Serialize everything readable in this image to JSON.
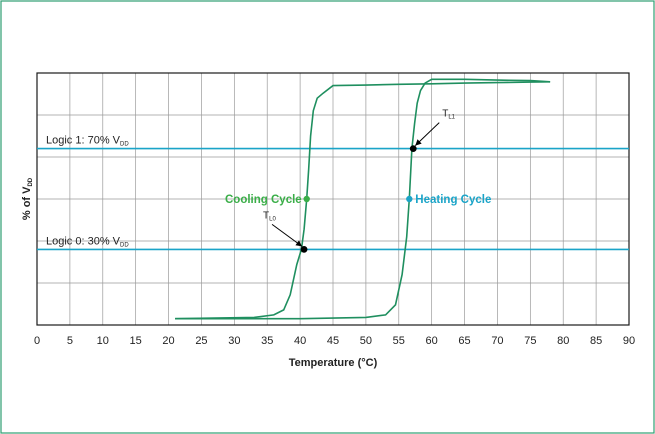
{
  "chart_data": {
    "type": "line",
    "title": "",
    "xlabel": "Temperature (°C)",
    "ylabel": {
      "main": "% of V",
      "sub": "DD"
    },
    "xlim": [
      0,
      90
    ],
    "ylim": [
      0,
      100
    ],
    "xticks": [
      0,
      5,
      10,
      15,
      20,
      25,
      30,
      35,
      40,
      45,
      50,
      55,
      60,
      65,
      70,
      75,
      80,
      85,
      90
    ],
    "yticks": [
      0,
      16.67,
      33.33,
      50,
      66.67,
      83.33,
      100
    ],
    "grid": true,
    "series": [
      {
        "x": [
          21,
          33,
          36,
          37.5,
          38.5,
          39.5,
          40.2,
          40.6,
          41,
          41.3,
          41.6,
          42,
          42.6,
          43.5,
          45,
          50,
          55,
          60,
          65,
          70,
          75,
          78
        ],
        "y": [
          2.5,
          3,
          4,
          6,
          12,
          24,
          30,
          38,
          50,
          62,
          75,
          85,
          90,
          92,
          95,
          95.2,
          95.5,
          95.7,
          96,
          96.2,
          96.4,
          96.5
        ],
        "color": "#1f8f5f"
      },
      {
        "x": [
          21,
          40,
          50,
          53,
          54.5,
          55.5,
          56.2,
          56.6,
          57,
          57.4,
          57.8,
          58.3,
          59,
          60,
          65,
          70,
          75,
          78
        ],
        "y": [
          2.5,
          2.5,
          3,
          4,
          8,
          20,
          35,
          50,
          70,
          80,
          88,
          93,
          96,
          97.5,
          97.5,
          97.2,
          97,
          96.5
        ],
        "color": "#1f8f5f"
      }
    ],
    "reference_lines": [
      {
        "y": 70,
        "label": {
          "main": "Logic 1: 70% V",
          "sub": "DD"
        },
        "color": "#1aa4c8"
      },
      {
        "y": 30,
        "label": {
          "main": "Logic 0: 30% V",
          "sub": "DD"
        },
        "color": "#1aa4c8"
      }
    ],
    "annotations": [
      {
        "text": "Cooling Cycle",
        "x": 41,
        "y": 50,
        "color": "#3aae48",
        "marker_color": "#3aae48",
        "anchor": "end"
      },
      {
        "text": "Heating Cycle",
        "x": 56.6,
        "y": 50,
        "color": "#1aa4c8",
        "marker_color": "#1aa4c8",
        "anchor": "start"
      }
    ],
    "points": [
      {
        "label": {
          "main": "T",
          "sub": "L0"
        },
        "x": 40.6,
        "y": 30
      },
      {
        "label": {
          "main": "T",
          "sub": "L1"
        },
        "x": 57.2,
        "y": 70
      }
    ]
  }
}
